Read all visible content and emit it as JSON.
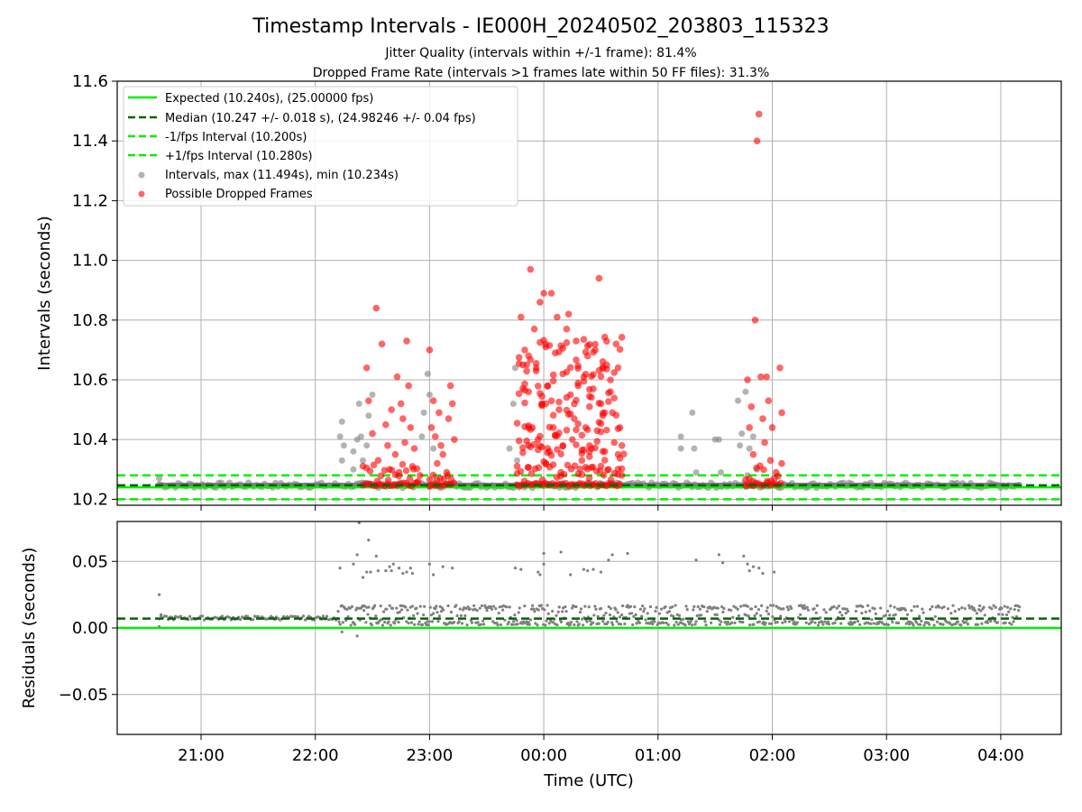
{
  "chart_data": {
    "type": "scatter",
    "title": "Timestamp Intervals - IE000H_20240502_203803_115323",
    "subtitle_1": "Jitter Quality (intervals within +/-1 frame): 81.4%",
    "subtitle_2": "Dropped Frame Rate (intervals >1 frames late within 50 FF files): 31.3%",
    "xlabel": "Time (UTC)",
    "x_ticks": [
      "21:00",
      "22:00",
      "23:00",
      "00:00",
      "01:00",
      "02:00",
      "03:00",
      "04:00"
    ],
    "top_panel": {
      "ylabel": "Intervals (seconds)",
      "ylim": [
        10.18,
        11.6
      ],
      "y_ticks": [
        "10.2",
        "10.4",
        "10.6",
        "10.8",
        "11.0",
        "11.2",
        "11.4",
        "11.6"
      ],
      "grid": true,
      "legend_position": "upper-left",
      "reference_lines": [
        {
          "label": "Expected (10.240s), (25.00000 fps)",
          "y": 10.24,
          "color": "#00ee00",
          "style": "solid"
        },
        {
          "label": "Median (10.247 +/- 0.018 s), (24.98246 +/- 0.04 fps)",
          "y": 10.247,
          "color": "#006400",
          "style": "dashed"
        },
        {
          "label": "-1/fps Interval (10.200s)",
          "y": 10.2,
          "color": "#00ee00",
          "style": "dashed"
        },
        {
          "label": "+1/fps Interval (10.280s)",
          "y": 10.28,
          "color": "#00ee00",
          "style": "dashed"
        }
      ],
      "series": [
        {
          "name": "Intervals, max (11.494s), min (10.234s)",
          "color": "#808080",
          "points": [
            [
              "20:38",
              10.27
            ],
            [
              "20:38",
              10.25
            ],
            [
              "22:13",
              10.41
            ],
            [
              "22:14",
              10.46
            ],
            [
              "22:14",
              10.33
            ],
            [
              "22:15",
              10.38
            ],
            [
              "22:20",
              10.36
            ],
            [
              "22:20",
              10.3
            ],
            [
              "22:22",
              10.4
            ],
            [
              "22:23",
              10.52
            ],
            [
              "22:24",
              10.41
            ],
            [
              "22:25",
              10.33
            ],
            [
              "22:27",
              10.38
            ],
            [
              "22:28",
              10.48
            ],
            [
              "22:30",
              10.55
            ],
            [
              "22:56",
              10.41
            ],
            [
              "22:57",
              10.49
            ],
            [
              "22:59",
              10.62
            ],
            [
              "23:00",
              10.55
            ],
            [
              "23:02",
              10.37
            ],
            [
              "23:42",
              10.37
            ],
            [
              "23:44",
              10.52
            ],
            [
              "23:45",
              10.64
            ],
            [
              "23:46",
              10.33
            ],
            [
              "01:12",
              10.41
            ],
            [
              "01:12",
              10.37
            ],
            [
              "01:18",
              10.49
            ],
            [
              "01:19",
              10.37
            ],
            [
              "01:20",
              10.29
            ],
            [
              "01:30",
              10.4
            ],
            [
              "01:32",
              10.4
            ],
            [
              "01:33",
              10.29
            ],
            [
              "01:42",
              10.53
            ],
            [
              "01:43",
              10.38
            ],
            [
              "01:44",
              10.42
            ],
            [
              "01:46",
              10.56
            ],
            [
              "01:47",
              10.28
            ],
            [
              "01:48",
              10.37
            ],
            [
              "01:50",
              10.41
            ],
            [
              "01:52",
              10.3
            ]
          ]
        },
        {
          "name": "Possible Dropped Frames",
          "color": "#ff0000",
          "points": [
            [
              "22:27",
              10.64
            ],
            [
              "22:28",
              10.53
            ],
            [
              "22:30",
              10.42
            ],
            [
              "22:32",
              10.84
            ],
            [
              "22:33",
              10.33
            ],
            [
              "22:35",
              10.72
            ],
            [
              "22:37",
              10.45
            ],
            [
              "22:38",
              10.38
            ],
            [
              "22:39",
              10.3
            ],
            [
              "22:40",
              10.5
            ],
            [
              "22:42",
              10.35
            ],
            [
              "22:43",
              10.61
            ],
            [
              "22:44",
              10.29
            ],
            [
              "22:45",
              10.52
            ],
            [
              "22:46",
              10.47
            ],
            [
              "22:47",
              10.39
            ],
            [
              "22:48",
              10.73
            ],
            [
              "22:49",
              10.58
            ],
            [
              "22:50",
              10.44
            ],
            [
              "22:51",
              10.31
            ],
            [
              "22:52",
              10.37
            ],
            [
              "22:54",
              10.26
            ],
            [
              "22:55",
              10.28
            ],
            [
              "23:00",
              10.7
            ],
            [
              "23:01",
              10.44
            ],
            [
              "23:02",
              10.53
            ],
            [
              "23:03",
              10.41
            ],
            [
              "23:04",
              10.32
            ],
            [
              "23:05",
              10.49
            ],
            [
              "23:06",
              10.38
            ],
            [
              "23:07",
              10.35
            ],
            [
              "23:09",
              10.29
            ],
            [
              "23:10",
              10.47
            ],
            [
              "23:11",
              10.58
            ],
            [
              "23:12",
              10.52
            ],
            [
              "23:13",
              10.4
            ],
            [
              "23:48",
              10.81
            ],
            [
              "23:49",
              10.65
            ],
            [
              "23:50",
              10.7
            ],
            [
              "23:52",
              10.56
            ],
            [
              "23:53",
              10.97
            ],
            [
              "23:54",
              10.44
            ],
            [
              "23:55",
              10.77
            ],
            [
              "23:56",
              10.63
            ],
            [
              "23:57",
              10.4
            ],
            [
              "23:58",
              10.86
            ],
            [
              "23:59",
              10.52
            ],
            [
              "00:00",
              10.89
            ],
            [
              "00:01",
              10.71
            ],
            [
              "00:02",
              10.58
            ],
            [
              "00:03",
              10.36
            ],
            [
              "00:04",
              10.89
            ],
            [
              "00:05",
              10.44
            ],
            [
              "00:06",
              10.69
            ],
            [
              "00:07",
              10.81
            ],
            [
              "00:08",
              10.5
            ],
            [
              "00:09",
              10.29
            ],
            [
              "00:10",
              10.62
            ],
            [
              "00:12",
              10.77
            ],
            [
              "00:13",
              10.82
            ],
            [
              "00:14",
              10.55
            ],
            [
              "00:15",
              10.4
            ],
            [
              "00:16",
              10.47
            ],
            [
              "00:17",
              10.73
            ],
            [
              "00:18",
              10.58
            ],
            [
              "00:20",
              10.33
            ],
            [
              "00:21",
              10.61
            ],
            [
              "00:22",
              10.44
            ],
            [
              "00:23",
              10.68
            ],
            [
              "00:24",
              10.51
            ],
            [
              "00:25",
              10.37
            ],
            [
              "00:26",
              10.57
            ],
            [
              "00:27",
              10.7
            ],
            [
              "00:28",
              10.43
            ],
            [
              "00:29",
              10.94
            ],
            [
              "00:30",
              10.52
            ],
            [
              "00:31",
              10.48
            ],
            [
              "00:32",
              10.36
            ],
            [
              "00:33",
              10.65
            ],
            [
              "00:34",
              10.3
            ],
            [
              "00:35",
              10.56
            ],
            [
              "00:36",
              10.49
            ],
            [
              "00:37",
              10.39
            ],
            [
              "00:38",
              10.72
            ],
            [
              "00:39",
              10.35
            ],
            [
              "00:40",
              10.44
            ],
            [
              "00:41",
              10.28
            ],
            [
              "01:47",
              10.6
            ],
            [
              "01:48",
              10.44
            ],
            [
              "01:49",
              10.51
            ],
            [
              "01:50",
              10.35
            ],
            [
              "01:51",
              10.8
            ],
            [
              "01:52",
              11.4
            ],
            [
              "01:53",
              11.49
            ],
            [
              "01:54",
              10.61
            ],
            [
              "01:55",
              10.47
            ],
            [
              "01:56",
              10.39
            ],
            [
              "01:57",
              10.61
            ],
            [
              "01:58",
              10.53
            ],
            [
              "01:59",
              10.33
            ],
            [
              "02:00",
              10.44
            ],
            [
              "02:02",
              10.29
            ],
            [
              "02:04",
              10.64
            ],
            [
              "02:05",
              10.49
            ]
          ]
        }
      ]
    },
    "bottom_panel": {
      "ylabel": "Residuals (seconds)",
      "ylim": [
        -0.08,
        0.08
      ],
      "y_ticks": [
        "0.05",
        "0.00",
        "−0.05"
      ],
      "grid": true,
      "reference_lines": [
        {
          "y": 0.0,
          "color": "#00ee00",
          "style": "solid"
        },
        {
          "y": 0.007,
          "color": "#006400",
          "style": "dashed"
        }
      ],
      "series": [
        {
          "color": "#808080",
          "bands": [
            {
              "from": "20:38",
              "to": "22:12",
              "min": 0.006,
              "max": 0.009
            },
            {
              "from": "22:12",
              "to": "04:10",
              "min": 0.002,
              "max": 0.017
            }
          ],
          "points": [
            [
              "20:38",
              0.025
            ],
            [
              "20:38",
              0.001
            ],
            [
              "20:39",
              0.01
            ],
            [
              "22:13",
              0.045
            ],
            [
              "22:14",
              -0.003
            ],
            [
              "22:20",
              0.048
            ],
            [
              "22:22",
              0.055
            ],
            [
              "22:23",
              0.079
            ],
            [
              "22:25",
              0.038
            ],
            [
              "22:27",
              0.042
            ],
            [
              "22:28",
              0.066
            ],
            [
              "22:29",
              0.042
            ],
            [
              "22:32",
              0.054
            ],
            [
              "22:33",
              0.043
            ],
            [
              "22:37",
              0.043
            ],
            [
              "22:39",
              0.046
            ],
            [
              "22:40",
              0.043
            ],
            [
              "22:41",
              0.048
            ],
            [
              "22:44",
              0.045
            ],
            [
              "22:46",
              0.041
            ],
            [
              "22:48",
              0.042
            ],
            [
              "22:50",
              0.045
            ],
            [
              "22:51",
              0.041
            ],
            [
              "22:22",
              -0.006
            ],
            [
              "23:00",
              0.048
            ],
            [
              "23:02",
              0.04
            ],
            [
              "23:07",
              0.046
            ],
            [
              "23:12",
              0.045
            ],
            [
              "23:45",
              0.045
            ],
            [
              "23:48",
              0.044
            ],
            [
              "23:57",
              0.042
            ],
            [
              "23:58",
              0.04
            ],
            [
              "24:00",
              0.048
            ],
            [
              "24:00",
              0.056
            ],
            [
              "24:09",
              0.057
            ],
            [
              "24:14",
              0.04
            ],
            [
              "24:21",
              0.044
            ],
            [
              "24:23",
              0.043
            ],
            [
              "24:26",
              0.044
            ],
            [
              "24:30",
              0.042
            ],
            [
              "24:34",
              0.051
            ],
            [
              "24:36",
              0.055
            ],
            [
              "24:44",
              0.056
            ],
            [
              "25:20",
              0.051
            ],
            [
              "25:32",
              0.055
            ],
            [
              "25:34",
              0.049
            ],
            [
              "25:45",
              0.054
            ],
            [
              "25:47",
              0.048
            ],
            [
              "25:48",
              0.043
            ],
            [
              "25:50",
              0.046
            ],
            [
              "25:53",
              0.045
            ],
            [
              "25:55",
              0.041
            ],
            [
              "26:01",
              0.042
            ]
          ]
        }
      ]
    }
  }
}
